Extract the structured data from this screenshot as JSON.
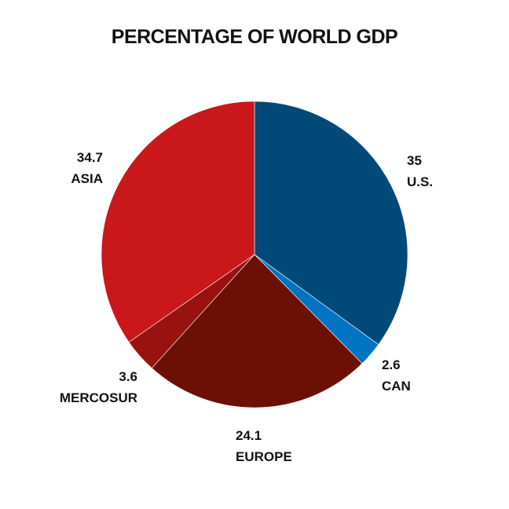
{
  "chart_data": {
    "type": "pie",
    "title": "PERCENTAGE OF WORLD GDP",
    "slices": [
      {
        "label": "U.S.",
        "value_label": "35",
        "value": 35,
        "color": "#004a7a"
      },
      {
        "label": "CAN",
        "value_label": "2.6",
        "value": 2.6,
        "color": "#0073c2"
      },
      {
        "label": "EUROPE",
        "value_label": "24.1",
        "value": 24.1,
        "color": "#6c0f04"
      },
      {
        "label": "MERCOSUR",
        "value_label": "3.6",
        "value": 3.6,
        "color": "#98120f"
      },
      {
        "label": "ASIA",
        "value_label": "34.7",
        "value": 34.7,
        "color": "#ca1719"
      }
    ],
    "legend": "none"
  }
}
